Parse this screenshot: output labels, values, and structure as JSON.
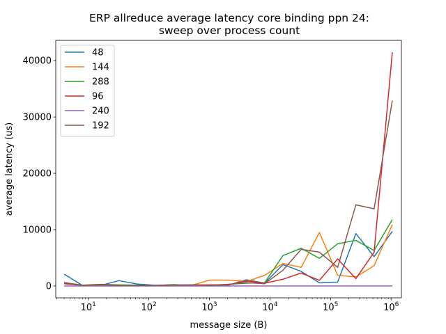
{
  "chart_data": {
    "type": "line",
    "title_lines": [
      "ERP allreduce average latency core binding ppn 24:",
      "sweep over process count"
    ],
    "xlabel": "message size (B)",
    "ylabel": "average latency (us)",
    "xscale": "log",
    "xlim": [
      2.9,
      1480000.0
    ],
    "ylim": [
      -2100,
      43600
    ],
    "xticks": [
      {
        "value": 10,
        "base": "10",
        "exp": "1"
      },
      {
        "value": 100,
        "base": "10",
        "exp": "2"
      },
      {
        "value": 1000,
        "base": "10",
        "exp": "3"
      },
      {
        "value": 10000,
        "base": "10",
        "exp": "4"
      },
      {
        "value": 100000,
        "base": "10",
        "exp": "5"
      },
      {
        "value": 1000000,
        "base": "10",
        "exp": "6"
      }
    ],
    "yticks": [
      {
        "value": 0,
        "label": "0"
      },
      {
        "value": 10000,
        "label": "10000"
      },
      {
        "value": 20000,
        "label": "20000"
      },
      {
        "value": 30000,
        "label": "30000"
      },
      {
        "value": 40000,
        "label": "40000"
      }
    ],
    "grid": false,
    "legend_position": "top-left",
    "x": [
      4,
      8,
      16,
      32,
      64,
      128,
      256,
      512,
      1024,
      2048,
      4096,
      8192,
      16384,
      32768,
      65536,
      131072,
      262144,
      524288,
      1048576
    ],
    "series": [
      {
        "name": "48",
        "color": "#1f77b4",
        "values": [
          2100,
          100,
          100,
          950,
          350,
          120,
          200,
          150,
          100,
          150,
          1100,
          500,
          3800,
          2600,
          550,
          700,
          9300,
          5200,
          9700
        ]
      },
      {
        "name": "144",
        "color": "#ff7f0e",
        "values": [
          500,
          150,
          180,
          100,
          60,
          80,
          80,
          130,
          1050,
          1050,
          800,
          1900,
          4000,
          3300,
          9500,
          1900,
          1600,
          3600,
          10900
        ]
      },
      {
        "name": "288",
        "color": "#2ca02c",
        "values": [
          600,
          150,
          300,
          200,
          150,
          100,
          250,
          100,
          150,
          300,
          500,
          600,
          5400,
          6700,
          4900,
          7500,
          8100,
          6300,
          11800
        ]
      },
      {
        "name": "96",
        "color": "#d62728",
        "values": [
          400,
          100,
          250,
          100,
          100,
          100,
          150,
          200,
          200,
          200,
          900,
          500,
          1200,
          2300,
          1000,
          4800,
          1300,
          6000,
          41500
        ]
      },
      {
        "name": "240",
        "color": "#9467bd",
        "values": [
          0,
          0,
          0,
          0,
          0,
          0,
          0,
          0,
          0,
          0,
          0,
          0,
          0,
          0,
          0,
          0,
          0,
          0,
          0
        ]
      },
      {
        "name": "192",
        "color": "#8c564b",
        "values": [
          600,
          100,
          200,
          100,
          100,
          100,
          150,
          200,
          100,
          300,
          600,
          400,
          2800,
          6500,
          6000,
          3300,
          14400,
          13700,
          32900
        ]
      }
    ]
  }
}
